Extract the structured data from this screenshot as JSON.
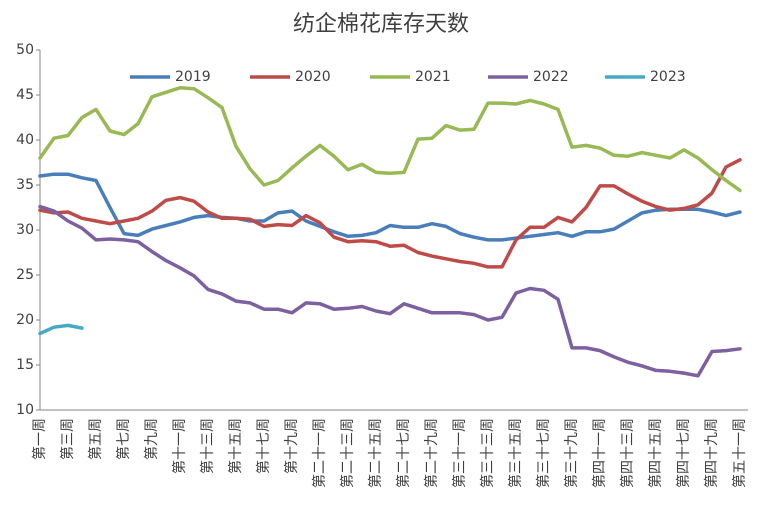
{
  "chart_data": {
    "type": "line",
    "title": "纺企棉花库存天数",
    "categories": [
      "第一周",
      null,
      "第三周",
      null,
      "第五周",
      null,
      "第七周",
      null,
      "第九周",
      null,
      "第十一周",
      null,
      "第十三周",
      null,
      "第十五周",
      null,
      "第十七周",
      null,
      "第十九周",
      null,
      "第二十一周",
      null,
      "第二十三周",
      null,
      "第二十五周",
      null,
      "第二十七周",
      null,
      "第二十九周",
      null,
      "第三十一周",
      null,
      "第三十三周",
      null,
      "第三十五周",
      null,
      "第三十七周",
      null,
      "第三十九周",
      null,
      "第四十一周",
      null,
      "第四十三周",
      null,
      "第四十五周",
      null,
      "第四十七周",
      null,
      "第四十九周",
      null,
      "第五十一周"
    ],
    "ylim": [
      10,
      50
    ],
    "yticks": [
      10,
      15,
      20,
      25,
      30,
      35,
      40,
      45,
      50
    ],
    "grid": false,
    "legend": "top",
    "series": [
      {
        "name": "2019",
        "color": "#4a7ebb",
        "values": [
          36,
          36.2,
          36.2,
          35.8,
          35.5,
          32.5,
          29.6,
          29.4,
          30.1,
          30.5,
          30.9,
          31.4,
          31.6,
          31.4,
          31.3,
          31.0,
          31.0,
          31.9,
          32.1,
          31.0,
          30.4,
          29.8,
          29.3,
          29.4,
          29.7,
          30.5,
          30.3,
          30.3,
          30.7,
          30.4,
          29.6,
          29.2,
          28.9,
          28.9,
          29.1,
          29.3,
          29.5,
          29.7,
          29.3,
          29.8,
          29.8,
          30.1,
          31.0,
          31.9,
          32.2,
          32.3,
          32.3,
          32.3,
          32.0,
          31.6,
          32.0
        ]
      },
      {
        "name": "2020",
        "color": "#be4b48",
        "values": [
          32.2,
          31.9,
          32.0,
          31.3,
          31.0,
          30.7,
          31.0,
          31.3,
          32.1,
          33.3,
          33.6,
          33.2,
          32.0,
          31.3,
          31.3,
          31.2,
          30.4,
          30.6,
          30.5,
          31.6,
          30.8,
          29.2,
          28.7,
          28.8,
          28.7,
          28.2,
          28.3,
          27.5,
          27.1,
          26.8,
          26.5,
          26.3,
          25.9,
          25.9,
          28.9,
          30.3,
          30.3,
          31.4,
          30.9,
          32.5,
          34.9,
          34.9,
          34.0,
          33.2,
          32.6,
          32.2,
          32.4,
          32.8,
          34.1,
          37.0,
          37.8
        ]
      },
      {
        "name": "2021",
        "color": "#98b954",
        "values": [
          38,
          40.2,
          40.5,
          42.5,
          43.4,
          41,
          40.6,
          41.8,
          44.8,
          45.3,
          45.8,
          45.7,
          44.7,
          43.6,
          39.3,
          36.8,
          35.0,
          35.5,
          36.9,
          38.2,
          39.4,
          38.2,
          36.7,
          37.3,
          36.4,
          36.3,
          36.4,
          40.1,
          40.2,
          41.6,
          41.1,
          41.2,
          44.1,
          44.1,
          44.0,
          44.4,
          44.0,
          43.4,
          39.2,
          39.4,
          39.1,
          38.3,
          38.2,
          38.6,
          38.3,
          38.0,
          38.9,
          38.0,
          36.7,
          35.5,
          34.4
        ]
      },
      {
        "name": "2022",
        "color": "#7d60a0",
        "values": [
          32.6,
          32.1,
          31.0,
          30.2,
          28.9,
          29.0,
          28.9,
          28.7,
          27.6,
          26.6,
          25.8,
          24.9,
          23.4,
          22.9,
          22.1,
          21.9,
          21.2,
          21.2,
          20.8,
          21.9,
          21.8,
          21.2,
          21.3,
          21.5,
          21.0,
          20.7,
          21.8,
          21.3,
          20.8,
          20.8,
          20.8,
          20.6,
          20.0,
          20.3,
          23.0,
          23.5,
          23.3,
          22.3,
          16.9,
          16.9,
          16.6,
          15.9,
          15.3,
          14.9,
          14.4,
          14.3,
          14.1,
          13.8,
          16.5,
          16.6,
          16.8
        ]
      },
      {
        "name": "2023",
        "color": "#46aac5",
        "values": [
          18.5,
          19.2,
          19.4,
          19.1,
          null,
          null,
          null,
          null,
          null,
          null,
          null,
          null,
          null,
          null,
          null,
          null,
          null,
          null,
          null,
          null,
          null,
          null,
          null,
          null,
          null,
          null,
          null,
          null,
          null,
          null,
          null,
          null,
          null,
          null,
          null,
          null,
          null,
          null,
          null,
          null,
          null,
          null,
          null,
          null,
          null,
          null,
          null,
          null,
          null,
          null,
          null
        ]
      }
    ]
  }
}
